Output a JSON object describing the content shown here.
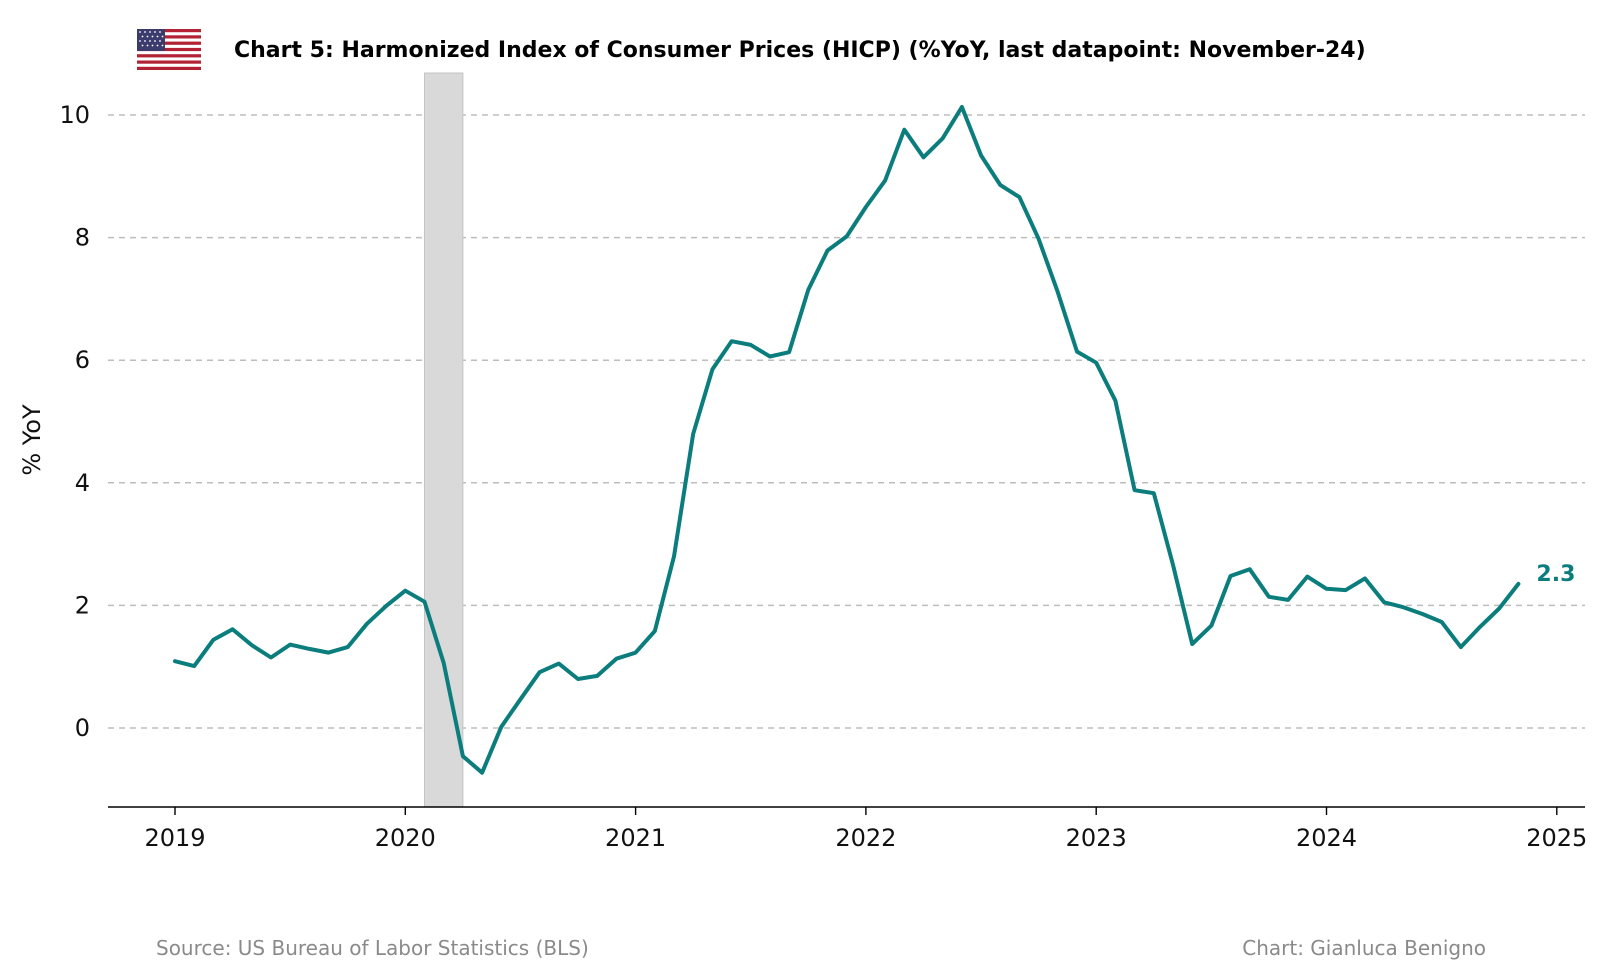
{
  "header": {
    "flag_icon": "us-flag-icon",
    "title": "Chart 5: Harmonized Index of Consumer Prices (HICP) (%YoY, last datapoint: November-24)"
  },
  "footer": {
    "source": "Source: US Bureau of Labor Statistics (BLS)",
    "credit": "Chart: Gianluca Benigno"
  },
  "colors": {
    "line": "#0b7d7d",
    "shade": "#d9d9d9",
    "grid": "#bdbdbd"
  },
  "chart_data": {
    "type": "line",
    "title": "Chart 5: Harmonized Index of Consumer Prices (HICP) (%YoY, last datapoint: November-24)",
    "xlabel": "",
    "ylabel": "% YoY",
    "xlim": [
      "2018-12",
      "2025-02"
    ],
    "ylim": [
      -1.3,
      10.7
    ],
    "yticks": [
      0,
      2,
      4,
      6,
      8,
      10
    ],
    "xticks": [
      "2019",
      "2020",
      "2021",
      "2022",
      "2023",
      "2024",
      "2025"
    ],
    "grid": "horizontal-dashed",
    "shaded_period": {
      "start": "2020-02",
      "end": "2020-04"
    },
    "end_label": "2.3",
    "series": [
      {
        "values": [
          {
            "x": "2019-01",
            "y": 1.09
          },
          {
            "x": "2019-02",
            "y": 1.01
          },
          {
            "x": "2019-03",
            "y": 1.44
          },
          {
            "x": "2019-04",
            "y": 1.61
          },
          {
            "x": "2019-05",
            "y": 1.35
          },
          {
            "x": "2019-06",
            "y": 1.15
          },
          {
            "x": "2019-07",
            "y": 1.36
          },
          {
            "x": "2019-08",
            "y": 1.29
          },
          {
            "x": "2019-09",
            "y": 1.23
          },
          {
            "x": "2019-10",
            "y": 1.32
          },
          {
            "x": "2019-11",
            "y": 1.7
          },
          {
            "x": "2019-12",
            "y": 1.99
          },
          {
            "x": "2020-01",
            "y": 2.24
          },
          {
            "x": "2020-02",
            "y": 2.06
          },
          {
            "x": "2020-03",
            "y": 1.06
          },
          {
            "x": "2020-04",
            "y": -0.46
          },
          {
            "x": "2020-05",
            "y": -0.73
          },
          {
            "x": "2020-06",
            "y": 0.02
          },
          {
            "x": "2020-07",
            "y": 0.47
          },
          {
            "x": "2020-08",
            "y": 0.91
          },
          {
            "x": "2020-09",
            "y": 1.05
          },
          {
            "x": "2020-10",
            "y": 0.8
          },
          {
            "x": "2020-11",
            "y": 0.85
          },
          {
            "x": "2020-12",
            "y": 1.13
          },
          {
            "x": "2021-01",
            "y": 1.23
          },
          {
            "x": "2021-02",
            "y": 1.58
          },
          {
            "x": "2021-03",
            "y": 2.8
          },
          {
            "x": "2021-04",
            "y": 4.8
          },
          {
            "x": "2021-05",
            "y": 5.85
          },
          {
            "x": "2021-06",
            "y": 6.31
          },
          {
            "x": "2021-07",
            "y": 6.25
          },
          {
            "x": "2021-08",
            "y": 6.06
          },
          {
            "x": "2021-09",
            "y": 6.13
          },
          {
            "x": "2021-10",
            "y": 7.15
          },
          {
            "x": "2021-11",
            "y": 7.79
          },
          {
            "x": "2021-12",
            "y": 8.02
          },
          {
            "x": "2022-01",
            "y": 8.5
          },
          {
            "x": "2022-02",
            "y": 8.93
          },
          {
            "x": "2022-03",
            "y": 9.76
          },
          {
            "x": "2022-04",
            "y": 9.31
          },
          {
            "x": "2022-05",
            "y": 9.62
          },
          {
            "x": "2022-06",
            "y": 10.13
          },
          {
            "x": "2022-07",
            "y": 9.34
          },
          {
            "x": "2022-08",
            "y": 8.86
          },
          {
            "x": "2022-09",
            "y": 8.66
          },
          {
            "x": "2022-10",
            "y": 7.98
          },
          {
            "x": "2022-11",
            "y": 7.11
          },
          {
            "x": "2022-12",
            "y": 6.14
          },
          {
            "x": "2023-01",
            "y": 5.96
          },
          {
            "x": "2023-02",
            "y": 5.34
          },
          {
            "x": "2023-03",
            "y": 3.88
          },
          {
            "x": "2023-04",
            "y": 3.83
          },
          {
            "x": "2023-05",
            "y": 2.66
          },
          {
            "x": "2023-06",
            "y": 1.37
          },
          {
            "x": "2023-07",
            "y": 1.67
          },
          {
            "x": "2023-08",
            "y": 2.48
          },
          {
            "x": "2023-09",
            "y": 2.59
          },
          {
            "x": "2023-10",
            "y": 2.14
          },
          {
            "x": "2023-11",
            "y": 2.09
          },
          {
            "x": "2023-12",
            "y": 2.47
          },
          {
            "x": "2024-01",
            "y": 2.27
          },
          {
            "x": "2024-02",
            "y": 2.25
          },
          {
            "x": "2024-03",
            "y": 2.44
          },
          {
            "x": "2024-04",
            "y": 2.05
          },
          {
            "x": "2024-05",
            "y": 1.97
          },
          {
            "x": "2024-06",
            "y": 1.86
          },
          {
            "x": "2024-07",
            "y": 1.73
          },
          {
            "x": "2024-08",
            "y": 1.32
          },
          {
            "x": "2024-09",
            "y": 1.65
          },
          {
            "x": "2024-10",
            "y": 1.95
          },
          {
            "x": "2024-11",
            "y": 2.35
          }
        ]
      }
    ]
  }
}
